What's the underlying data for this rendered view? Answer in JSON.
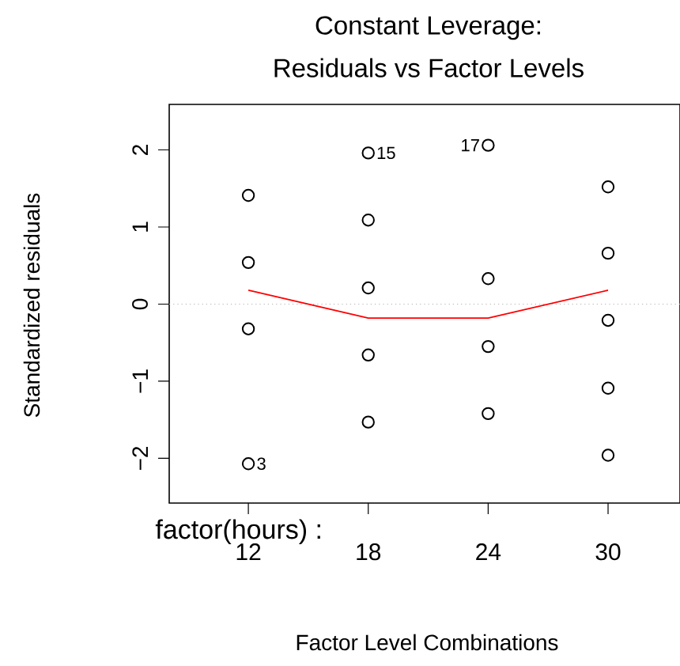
{
  "chart_data": {
    "type": "scatter",
    "title": "Constant Leverage:\nResiduals vs Factor Levels",
    "xlabel": "Factor Level Combinations",
    "ylabel": "Standardized residuals",
    "categories": [
      "12",
      "18",
      "24",
      "30"
    ],
    "series": [
      {
        "color": "#000000",
        "marker": "circle",
        "x": [
          "12",
          "12",
          "12",
          "12",
          "18",
          "18",
          "18",
          "18",
          "18",
          "24",
          "24",
          "24",
          "24",
          "30",
          "30",
          "30",
          "30",
          "30"
        ],
        "values": [
          1.41,
          0.54,
          -0.32,
          -2.07,
          1.96,
          1.09,
          0.21,
          -0.66,
          -1.53,
          2.06,
          0.33,
          -0.55,
          -1.42,
          1.52,
          0.66,
          -0.21,
          -1.09,
          -1.96
        ]
      },
      {
        "type": "line",
        "color": "#ff0000",
        "marker": "none",
        "values": [
          0.18,
          -0.18,
          -0.18,
          0.18
        ]
      }
    ],
    "ylim": [
      -2.58,
      2.59
    ],
    "yticks": [
      {
        "value": -2,
        "label": "−2"
      },
      {
        "value": -1,
        "label": "−1"
      },
      0,
      1,
      2
    ],
    "ref_lines": [
      {
        "axis": "y",
        "value": 0,
        "color": "#b3b3b3",
        "line_style": "dotted"
      }
    ],
    "annotations": [
      "factor(hours) :",
      {
        "text": "15",
        "x": "18",
        "y": 1.96
      },
      {
        "text": "17",
        "x": "24",
        "y": 2.06
      },
      {
        "text": "3",
        "x": "12",
        "y": -2.07
      }
    ],
    "grid": false
  }
}
